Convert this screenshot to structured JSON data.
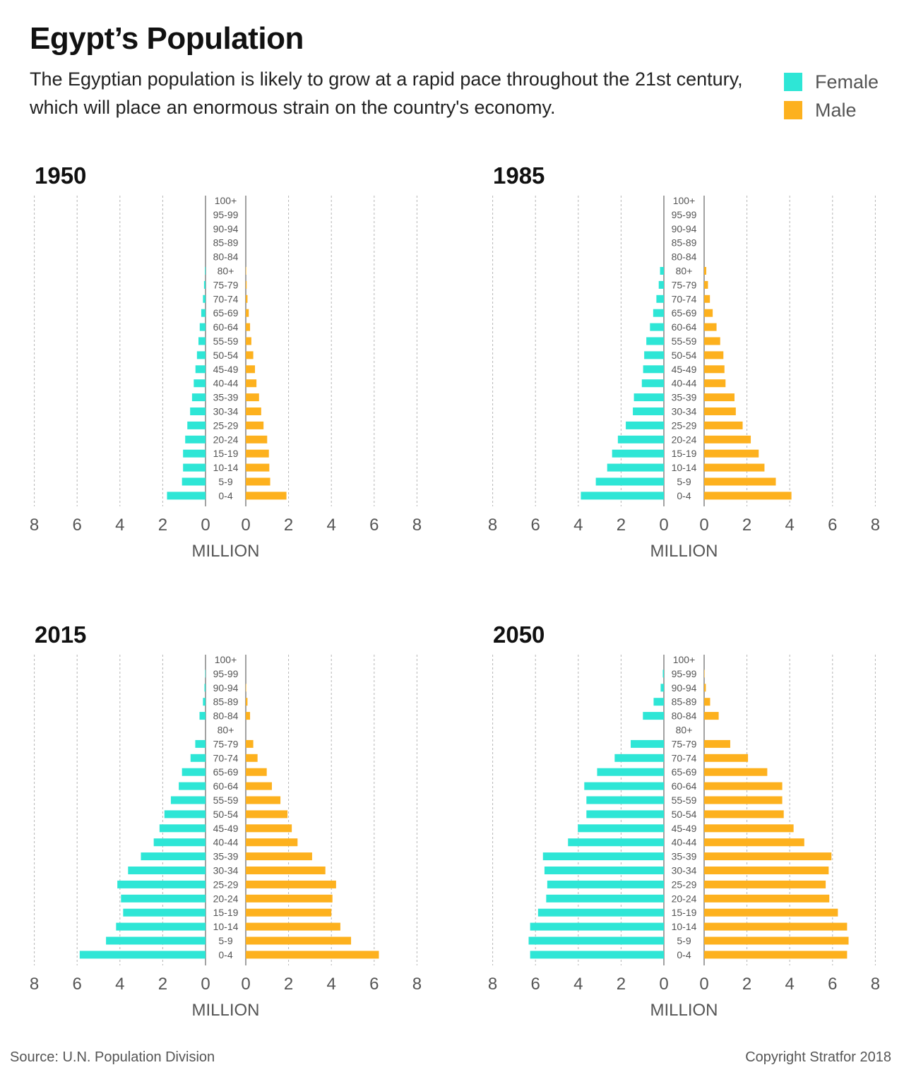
{
  "header": {
    "title": "Egypt’s Population",
    "subtitle": "The Egyptian population is likely to grow at a rapid pace throughout the 21st century, which will place an enormous strain on the country's economy."
  },
  "legend": [
    {
      "label": "Female",
      "color": "#2ee6d6"
    },
    {
      "label": "Male",
      "color": "#fdb11e"
    }
  ],
  "footer": {
    "source": "Source: U.N. Population Division",
    "copyright": "Copyright Stratfor 2018"
  },
  "chart_data": [
    {
      "type": "bar",
      "title": "1950",
      "xlabel": "MILLION",
      "xticks": [
        "8",
        "6",
        "4",
        "2",
        "0"
      ],
      "xlim": [
        0,
        8
      ],
      "categories": [
        "100+",
        "95-99",
        "90-94",
        "85-89",
        "80-84",
        "80+",
        "75-79",
        "70-74",
        "65-69",
        "60-64",
        "55-59",
        "50-54",
        "45-49",
        "40-44",
        "35-39",
        "30-34",
        "25-29",
        "20-24",
        "15-19",
        "10-14",
        "5-9",
        "0-4"
      ],
      "series": [
        {
          "name": "Female",
          "values": [
            0,
            0,
            0,
            0,
            0,
            0.03,
            0.07,
            0.12,
            0.2,
            0.27,
            0.33,
            0.4,
            0.47,
            0.55,
            0.63,
            0.72,
            0.85,
            0.95,
            1.05,
            1.05,
            1.1,
            1.8
          ]
        },
        {
          "name": "Male",
          "values": [
            0,
            0,
            0,
            0,
            0,
            0.02,
            0.04,
            0.08,
            0.14,
            0.2,
            0.26,
            0.35,
            0.43,
            0.5,
            0.62,
            0.72,
            0.83,
            1.0,
            1.08,
            1.1,
            1.14,
            1.9
          ]
        }
      ]
    },
    {
      "type": "bar",
      "title": "1985",
      "xlabel": "MILLION",
      "xticks": [
        "8",
        "6",
        "4",
        "2",
        "0"
      ],
      "xlim": [
        0,
        8
      ],
      "categories": [
        "100+",
        "95-99",
        "90-94",
        "85-89",
        "80-84",
        "80+",
        "75-79",
        "70-74",
        "65-69",
        "60-64",
        "55-59",
        "50-54",
        "45-49",
        "40-44",
        "35-39",
        "30-34",
        "25-29",
        "20-24",
        "15-19",
        "10-14",
        "5-9",
        "0-4"
      ],
      "series": [
        {
          "name": "Female",
          "values": [
            0,
            0,
            0,
            0,
            0,
            0.18,
            0.24,
            0.35,
            0.5,
            0.65,
            0.82,
            0.92,
            0.97,
            1.03,
            1.4,
            1.45,
            1.78,
            2.15,
            2.42,
            2.65,
            3.18,
            3.88
          ]
        },
        {
          "name": "Male",
          "values": [
            0,
            0,
            0,
            0,
            0,
            0.1,
            0.18,
            0.27,
            0.4,
            0.58,
            0.75,
            0.9,
            0.95,
            1.0,
            1.42,
            1.48,
            1.8,
            2.18,
            2.55,
            2.82,
            3.35,
            4.08
          ]
        }
      ]
    },
    {
      "type": "bar",
      "title": "2015",
      "xlabel": "MILLION",
      "xticks": [
        "8",
        "6",
        "4",
        "2",
        "0"
      ],
      "xlim": [
        0,
        8
      ],
      "categories": [
        "100+",
        "95-99",
        "90-94",
        "85-89",
        "80-84",
        "80+",
        "75-79",
        "70-74",
        "65-69",
        "60-64",
        "55-59",
        "50-54",
        "45-49",
        "40-44",
        "35-39",
        "30-34",
        "25-29",
        "20-24",
        "15-19",
        "10-14",
        "5-9",
        "0-4"
      ],
      "series": [
        {
          "name": "Female",
          "values": [
            0,
            0.02,
            0.05,
            0.12,
            0.28,
            0,
            0.48,
            0.7,
            1.1,
            1.25,
            1.62,
            1.92,
            2.15,
            2.42,
            3.02,
            3.62,
            4.12,
            3.95,
            3.85,
            4.18,
            4.65,
            5.88
          ]
        },
        {
          "name": "Male",
          "values": [
            0,
            0,
            0.02,
            0.08,
            0.2,
            0,
            0.35,
            0.55,
            0.98,
            1.22,
            1.62,
            1.95,
            2.15,
            2.42,
            3.1,
            3.72,
            4.22,
            4.05,
            4.0,
            4.42,
            4.92,
            6.22
          ]
        }
      ]
    },
    {
      "type": "bar",
      "title": "2050",
      "xlabel": "MILLION",
      "xticks": [
        "8",
        "6",
        "4",
        "2",
        "0"
      ],
      "xlim": [
        0,
        8
      ],
      "categories": [
        "100+",
        "95-99",
        "90-94",
        "85-89",
        "80-84",
        "80+",
        "75-79",
        "70-74",
        "65-69",
        "60-64",
        "55-59",
        "50-54",
        "45-49",
        "40-44",
        "35-39",
        "30-34",
        "25-29",
        "20-24",
        "15-19",
        "10-14",
        "5-9",
        "0-4"
      ],
      "series": [
        {
          "name": "Female",
          "values": [
            0,
            0.05,
            0.15,
            0.48,
            0.98,
            0,
            1.55,
            2.3,
            3.12,
            3.72,
            3.62,
            3.62,
            4.02,
            4.48,
            5.65,
            5.58,
            5.45,
            5.5,
            5.88,
            6.25,
            6.32,
            6.25
          ]
        },
        {
          "name": "Male",
          "values": [
            0,
            0.02,
            0.08,
            0.28,
            0.68,
            0,
            1.22,
            2.05,
            2.95,
            3.65,
            3.65,
            3.72,
            4.18,
            4.68,
            5.95,
            5.82,
            5.68,
            5.85,
            6.25,
            6.68,
            6.75,
            6.68
          ]
        }
      ]
    }
  ]
}
